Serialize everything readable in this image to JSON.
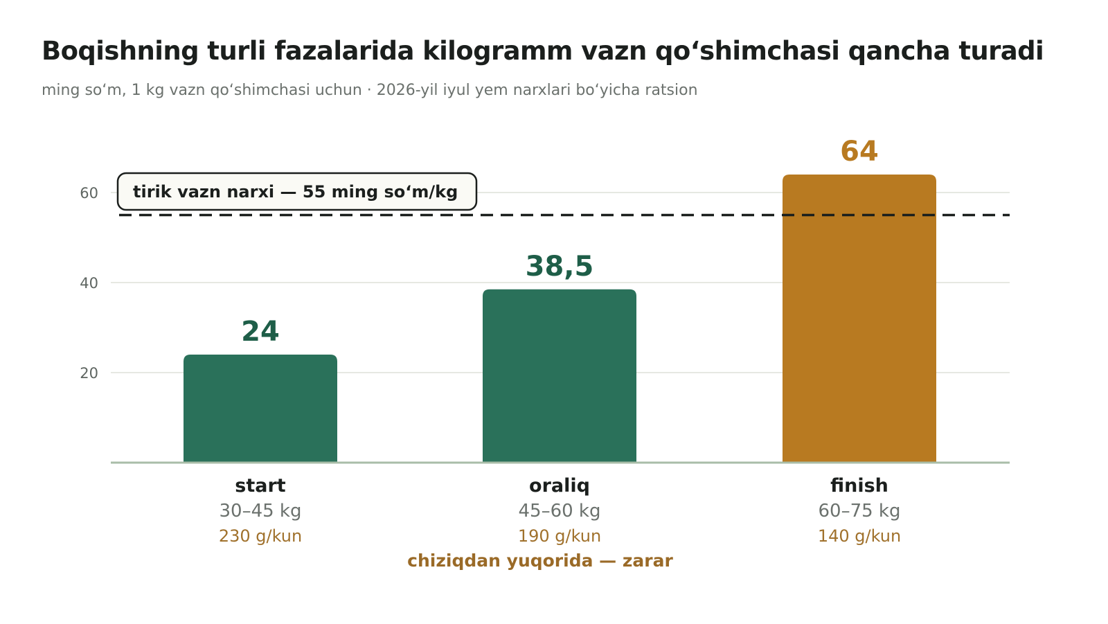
{
  "chart_data": {
    "type": "bar",
    "title": "Boqishning turli fazalarida kilogramm vazn qo‘shimchasi qancha turadi",
    "subtitle": "ming so‘m, 1 kg vazn qo‘shimchasi uchun · 2026-yil iyul yem narxlari bo‘yicha ratsion",
    "categories": [
      "start",
      "oraliq",
      "finish"
    ],
    "ranges": [
      "30–45 kg",
      "45–60 kg",
      "60–75 kg"
    ],
    "rates": [
      "230 g/kun",
      "190 g/kun",
      "140 g/kun"
    ],
    "values": [
      24,
      38.5,
      64
    ],
    "value_labels": [
      "24",
      "38,5",
      "64"
    ],
    "ylim": [
      0,
      70
    ],
    "yticks": [
      20,
      40,
      60
    ],
    "grid": true,
    "reference_line": {
      "value": 55,
      "label": "tirik vazn narxi — 55 ming so‘m/kg"
    },
    "annotation": "chiziqdan yuqorida — zarar",
    "colors": {
      "below": "#2a715a",
      "above": "#b87a21",
      "label_below": "#1e5e48",
      "label_above": "#b87a21"
    }
  }
}
